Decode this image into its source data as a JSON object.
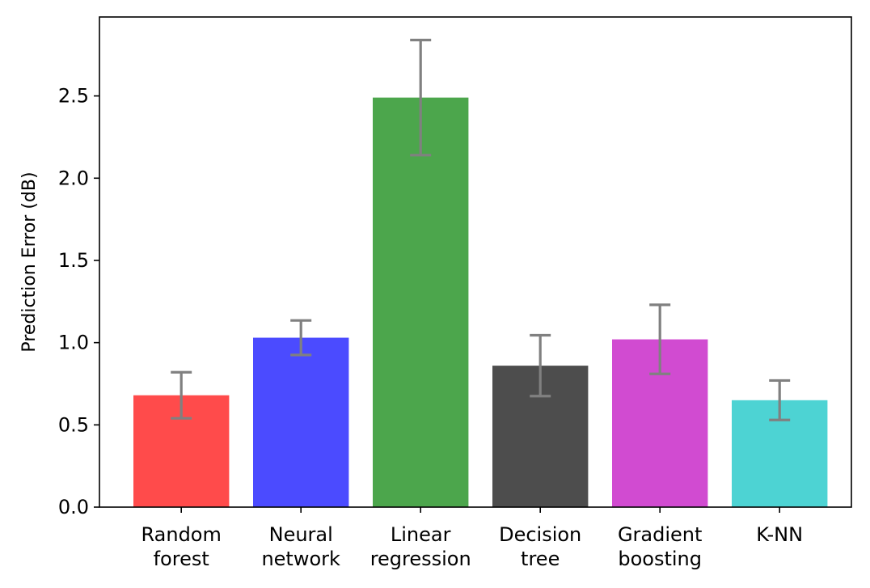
{
  "chart_data": {
    "type": "bar",
    "title": "",
    "xlabel": "",
    "ylabel": "Prediction Error (dB)",
    "categories": [
      [
        "Random",
        "forest"
      ],
      [
        "Neural",
        "network"
      ],
      [
        "Linear",
        "regression"
      ],
      [
        "Decision",
        "tree"
      ],
      [
        "Gradient",
        "boosting"
      ],
      [
        "K-NN"
      ]
    ],
    "values": [
      0.68,
      1.03,
      2.49,
      0.86,
      1.02,
      0.65
    ],
    "errors": [
      0.14,
      0.105,
      0.35,
      0.185,
      0.21,
      0.12
    ],
    "colors": [
      "#ff4b4b",
      "#4b4bff",
      "#4ca64c",
      "#4d4d4d",
      "#d14bd1",
      "#4dd3d3"
    ],
    "error_color": "#808080",
    "ylim": [
      0,
      2.98
    ],
    "yticks": [
      "0.0",
      "0.5",
      "1.0",
      "1.5",
      "2.0",
      "2.5"
    ],
    "grid": false,
    "legend": "none"
  }
}
